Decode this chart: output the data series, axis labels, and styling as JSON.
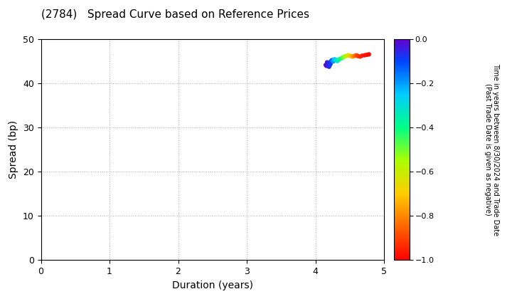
{
  "title": "(2784)   Spread Curve based on Reference Prices",
  "xlabel": "Duration (years)",
  "ylabel": "Spread (bp)",
  "xlim": [
    0,
    5
  ],
  "ylim": [
    0,
    50
  ],
  "xticks": [
    0,
    1,
    2,
    3,
    4,
    5
  ],
  "yticks": [
    0,
    10,
    20,
    30,
    40,
    50
  ],
  "colorbar_line1": "Time in years between 8/30/2024 and Trade Date",
  "colorbar_line2": "(Past Trade Date is given as negative)",
  "clim": [
    -1.0,
    0.0
  ],
  "cticks": [
    0.0,
    -0.2,
    -0.4,
    -0.6,
    -0.8,
    -1.0
  ],
  "scatter_duration": [
    4.15,
    4.16,
    4.17,
    4.17,
    4.18,
    4.18,
    4.19,
    4.19,
    4.2,
    4.2,
    4.21,
    4.21,
    4.22,
    4.22,
    4.23,
    4.24,
    4.25,
    4.26,
    4.27,
    4.28,
    4.3,
    4.32,
    4.34,
    4.36,
    4.38,
    4.4,
    4.42,
    4.44,
    4.46,
    4.48,
    4.5,
    4.52,
    4.54,
    4.56,
    4.58,
    4.6,
    4.62,
    4.65,
    4.68,
    4.72,
    4.75,
    4.78
  ],
  "scatter_spread": [
    44.1,
    43.9,
    44.3,
    44.7,
    44.0,
    44.5,
    44.2,
    43.8,
    44.4,
    43.7,
    44.6,
    44.1,
    44.8,
    44.3,
    45.0,
    45.2,
    45.1,
    44.9,
    45.3,
    45.4,
    45.2,
    45.0,
    45.3,
    45.5,
    45.6,
    45.8,
    46.0,
    46.1,
    46.2,
    46.3,
    46.2,
    46.1,
    46.0,
    46.1,
    46.2,
    46.3,
    46.1,
    46.0,
    46.2,
    46.3,
    46.4,
    46.5
  ],
  "scatter_color_values": [
    -0.01,
    -0.02,
    -0.03,
    -0.04,
    -0.02,
    -0.05,
    -0.03,
    -0.06,
    -0.04,
    -0.07,
    -0.05,
    -0.08,
    -0.06,
    -0.09,
    -0.1,
    -0.13,
    -0.16,
    -0.19,
    -0.22,
    -0.25,
    -0.28,
    -0.32,
    -0.36,
    -0.4,
    -0.44,
    -0.48,
    -0.52,
    -0.56,
    -0.6,
    -0.64,
    -0.68,
    -0.72,
    -0.76,
    -0.8,
    -0.84,
    -0.88,
    -0.91,
    -0.93,
    -0.95,
    -0.97,
    -0.98,
    -0.99
  ],
  "marker_size": 20,
  "background_color": "#ffffff",
  "grid_color": "#999999",
  "title_fontsize": 11,
  "axis_fontsize": 10,
  "tick_fontsize": 9,
  "cbar_fontsize": 8,
  "cbar_label_fontsize": 7
}
